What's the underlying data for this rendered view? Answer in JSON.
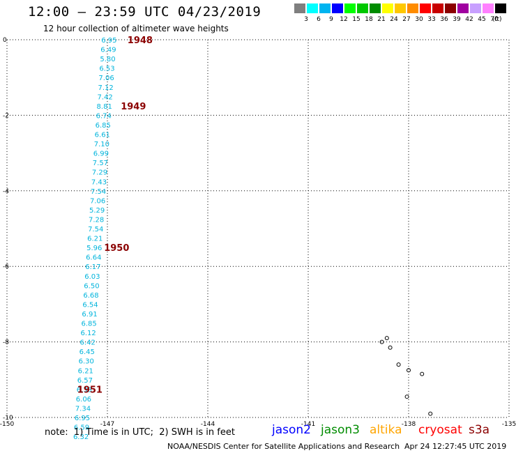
{
  "header": {
    "title": "12:00 — 23:59 UTC 04/23/2019",
    "subtitle": "12 hour collection of altimeter wave heights"
  },
  "colorbar": {
    "unit": "(ft)",
    "bins": [
      {
        "color": "#7f7f7f",
        "label": "3"
      },
      {
        "color": "#00ffff",
        "label": "6"
      },
      {
        "color": "#00b4f0",
        "label": "9"
      },
      {
        "color": "#0000ff",
        "label": "12"
      },
      {
        "color": "#00ff00",
        "label": "15"
      },
      {
        "color": "#00c800",
        "label": "18"
      },
      {
        "color": "#008c00",
        "label": "21"
      },
      {
        "color": "#ffff00",
        "label": "24"
      },
      {
        "color": "#ffc800",
        "label": "27"
      },
      {
        "color": "#ff8c00",
        "label": "30"
      },
      {
        "color": "#ff0000",
        "label": "33"
      },
      {
        "color": "#c80000",
        "label": "36"
      },
      {
        "color": "#8b0000",
        "label": "39"
      },
      {
        "color": "#a000a0",
        "label": "42"
      },
      {
        "color": "#c8a0ff",
        "label": "45"
      },
      {
        "color": "#ff80ff",
        "label": "70"
      },
      {
        "color": "#000000",
        "label": ""
      }
    ]
  },
  "map": {
    "lon_labels": [
      "-150",
      "-147",
      "-144",
      "-141",
      "-138",
      "-135"
    ],
    "lat_labels": [
      "0",
      "-2",
      "-4",
      "-6",
      "-8",
      "-10"
    ],
    "lon_range": [
      -150,
      -135
    ],
    "lat_range": [
      -10,
      0
    ],
    "track_color": "#00b4dc",
    "time_label_color": "#8b0000",
    "observations": [
      {
        "lon": -146.95,
        "lat": 0.0,
        "swh": "6.95"
      },
      {
        "lon": -146.97,
        "lat": -0.25,
        "swh": "6.49"
      },
      {
        "lon": -146.99,
        "lat": -0.5,
        "swh": "5.80"
      },
      {
        "lon": -147.01,
        "lat": -0.75,
        "swh": "6.53"
      },
      {
        "lon": -147.03,
        "lat": -1.0,
        "swh": "7.06"
      },
      {
        "lon": -147.05,
        "lat": -1.25,
        "swh": "7.12"
      },
      {
        "lon": -147.07,
        "lat": -1.5,
        "swh": "7.42"
      },
      {
        "lon": -147.09,
        "lat": -1.75,
        "swh": "8.81"
      },
      {
        "lon": -147.11,
        "lat": -2.0,
        "swh": "6.74"
      },
      {
        "lon": -147.13,
        "lat": -2.25,
        "swh": "6.85"
      },
      {
        "lon": -147.15,
        "lat": -2.5,
        "swh": "6.61"
      },
      {
        "lon": -147.17,
        "lat": -2.75,
        "swh": "7.10"
      },
      {
        "lon": -147.19,
        "lat": -3.0,
        "swh": "6.99"
      },
      {
        "lon": -147.21,
        "lat": -3.25,
        "swh": "7.57"
      },
      {
        "lon": -147.23,
        "lat": -3.5,
        "swh": "7.29"
      },
      {
        "lon": -147.25,
        "lat": -3.75,
        "swh": "7.43"
      },
      {
        "lon": -147.27,
        "lat": -4.0,
        "swh": "7.54"
      },
      {
        "lon": -147.29,
        "lat": -4.25,
        "swh": "7.06"
      },
      {
        "lon": -147.31,
        "lat": -4.5,
        "swh": "5.29"
      },
      {
        "lon": -147.33,
        "lat": -4.75,
        "swh": "7.28"
      },
      {
        "lon": -147.35,
        "lat": -5.0,
        "swh": "7.54"
      },
      {
        "lon": -147.37,
        "lat": -5.25,
        "swh": "6.21"
      },
      {
        "lon": -147.39,
        "lat": -5.5,
        "swh": "5.96"
      },
      {
        "lon": -147.41,
        "lat": -5.75,
        "swh": "6.64"
      },
      {
        "lon": -147.43,
        "lat": -6.0,
        "swh": "6.17"
      },
      {
        "lon": -147.45,
        "lat": -6.25,
        "swh": "6.03"
      },
      {
        "lon": -147.47,
        "lat": -6.5,
        "swh": "6.50"
      },
      {
        "lon": -147.49,
        "lat": -6.75,
        "swh": "6.68"
      },
      {
        "lon": -147.51,
        "lat": -7.0,
        "swh": "6.54"
      },
      {
        "lon": -147.53,
        "lat": -7.25,
        "swh": "6.91"
      },
      {
        "lon": -147.55,
        "lat": -7.5,
        "swh": "6.85"
      },
      {
        "lon": -147.57,
        "lat": -7.75,
        "swh": "6.12"
      },
      {
        "lon": -147.59,
        "lat": -8.0,
        "swh": "6.42"
      },
      {
        "lon": -147.61,
        "lat": -8.25,
        "swh": "6.45"
      },
      {
        "lon": -147.63,
        "lat": -8.5,
        "swh": "6.30"
      },
      {
        "lon": -147.65,
        "lat": -8.75,
        "swh": "6.21"
      },
      {
        "lon": -147.67,
        "lat": -9.0,
        "swh": "6.57"
      },
      {
        "lon": -147.69,
        "lat": -9.25,
        "swh": "6.33"
      },
      {
        "lon": -147.71,
        "lat": -9.5,
        "swh": "6.06"
      },
      {
        "lon": -147.73,
        "lat": -9.75,
        "swh": "7.34"
      },
      {
        "lon": -147.75,
        "lat": -10.0,
        "swh": "6.95"
      },
      {
        "lon": -147.77,
        "lat": -10.25,
        "swh": "6.59"
      },
      {
        "lon": -147.79,
        "lat": -10.5,
        "swh": "6.32"
      }
    ],
    "time_labels": [
      {
        "text": "1948",
        "lon": -146.4,
        "lat": 0.0
      },
      {
        "text": "1949",
        "lon": -146.6,
        "lat": -1.75
      },
      {
        "text": "1950",
        "lon": -147.1,
        "lat": -5.5
      },
      {
        "text": "1951",
        "lon": -147.9,
        "lat": -9.25
      }
    ],
    "islands": [
      {
        "lon": -138.8,
        "lat": -8.0
      },
      {
        "lon": -138.65,
        "lat": -7.9
      },
      {
        "lon": -138.55,
        "lat": -8.15
      },
      {
        "lon": -138.0,
        "lat": -8.75
      },
      {
        "lon": -138.3,
        "lat": -8.6
      },
      {
        "lon": -138.05,
        "lat": -9.45
      },
      {
        "lon": -137.6,
        "lat": -8.85
      },
      {
        "lon": -137.35,
        "lat": -9.9
      }
    ]
  },
  "footer": {
    "note": "note:  1) Time is in UTC;  2) SWH is in feet",
    "legend": [
      {
        "label": "jason2",
        "color": "#0000ff"
      },
      {
        "label": "jason3",
        "color": "#008c00"
      },
      {
        "label": "altika",
        "color": "#ffa500"
      },
      {
        "label": "cryosat",
        "color": "#ff0000"
      },
      {
        "label": "s3a",
        "color": "#8b0000"
      }
    ],
    "credit": "NOAA/NESDIS Center for Satellite Applications and Research",
    "stamp": "Apr 24 12:27:45 UTC 2019"
  }
}
